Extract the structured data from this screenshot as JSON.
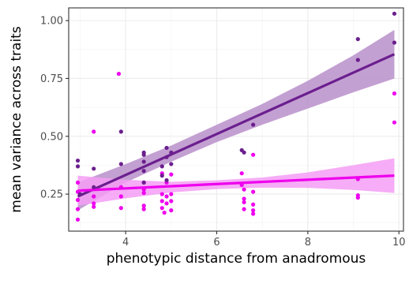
{
  "chart_data": {
    "type": "scatter",
    "title": "",
    "xlabel": "phenotypic distance from anadromous",
    "ylabel": "mean variance across traits",
    "xlim": [
      2.75,
      10.1
    ],
    "ylim": [
      0.09,
      1.055
    ],
    "xticks": [
      4,
      6,
      8,
      10
    ],
    "xtick_labels": [
      "4",
      "6",
      "8",
      "10"
    ],
    "yticks": [
      0.25,
      0.5,
      0.75,
      1.0
    ],
    "ytick_labels": [
      "0.25",
      "0.50",
      "0.75",
      "1.00"
    ],
    "grid": true,
    "legend": "none",
    "series": [
      {
        "color": "#6b1f8e",
        "band_color": "#b98fca",
        "points": [
          [
            2.95,
            0.395
          ],
          [
            2.95,
            0.37
          ],
          [
            3.0,
            0.25
          ],
          [
            3.3,
            0.36
          ],
          [
            3.3,
            0.28
          ],
          [
            3.9,
            0.52
          ],
          [
            3.9,
            0.38
          ],
          [
            4.4,
            0.43
          ],
          [
            4.4,
            0.42
          ],
          [
            4.4,
            0.39
          ],
          [
            4.4,
            0.35
          ],
          [
            4.4,
            0.3
          ],
          [
            4.8,
            0.37
          ],
          [
            4.8,
            0.33
          ],
          [
            4.9,
            0.45
          ],
          [
            4.9,
            0.41
          ],
          [
            4.9,
            0.31
          ],
          [
            5.0,
            0.43
          ],
          [
            5.0,
            0.38
          ],
          [
            6.55,
            0.44
          ],
          [
            6.6,
            0.43
          ],
          [
            6.8,
            0.55
          ],
          [
            9.1,
            0.92
          ],
          [
            9.1,
            0.83
          ],
          [
            9.9,
            1.03
          ],
          [
            9.9,
            0.905
          ]
        ],
        "fit": {
          "x": [
            2.95,
            9.9
          ],
          "y": [
            0.24,
            0.855
          ]
        },
        "ci": {
          "x": [
            2.95,
            4.0,
            5.0,
            6.0,
            7.0,
            8.0,
            9.0,
            9.9
          ],
          "lower": [
            0.18,
            0.3,
            0.39,
            0.475,
            0.55,
            0.62,
            0.69,
            0.75
          ],
          "upper": [
            0.3,
            0.38,
            0.46,
            0.55,
            0.64,
            0.74,
            0.85,
            0.96
          ]
        }
      },
      {
        "color": "#ee00ee",
        "band_color": "#f59df5",
        "points": [
          [
            2.95,
            0.14
          ],
          [
            2.95,
            0.185
          ],
          [
            2.95,
            0.225
          ],
          [
            2.95,
            0.26
          ],
          [
            2.95,
            0.3
          ],
          [
            3.3,
            0.52
          ],
          [
            3.3,
            0.24
          ],
          [
            3.3,
            0.195
          ],
          [
            3.3,
            0.21
          ],
          [
            3.85,
            0.77
          ],
          [
            3.9,
            0.28
          ],
          [
            3.9,
            0.24
          ],
          [
            3.9,
            0.19
          ],
          [
            4.4,
            0.3
          ],
          [
            4.4,
            0.27
          ],
          [
            4.4,
            0.255
          ],
          [
            4.4,
            0.2
          ],
          [
            4.4,
            0.185
          ],
          [
            4.8,
            0.34
          ],
          [
            4.8,
            0.25
          ],
          [
            4.8,
            0.22
          ],
          [
            4.8,
            0.19
          ],
          [
            4.85,
            0.17
          ],
          [
            4.9,
            0.3
          ],
          [
            4.9,
            0.24
          ],
          [
            4.9,
            0.21
          ],
          [
            5.0,
            0.335
          ],
          [
            5.0,
            0.25
          ],
          [
            5.0,
            0.22
          ],
          [
            5.0,
            0.18
          ],
          [
            6.55,
            0.34
          ],
          [
            6.55,
            0.29
          ],
          [
            6.6,
            0.27
          ],
          [
            6.6,
            0.23
          ],
          [
            6.6,
            0.215
          ],
          [
            6.6,
            0.185
          ],
          [
            6.8,
            0.42
          ],
          [
            6.8,
            0.26
          ],
          [
            6.8,
            0.205
          ],
          [
            6.8,
            0.18
          ],
          [
            6.8,
            0.165
          ],
          [
            9.1,
            0.315
          ],
          [
            9.1,
            0.245
          ],
          [
            9.1,
            0.235
          ],
          [
            9.9,
            0.685
          ],
          [
            9.9,
            0.56
          ]
        ],
        "fit": {
          "x": [
            2.95,
            9.9
          ],
          "y": [
            0.265,
            0.33
          ]
        },
        "ci": {
          "x": [
            2.95,
            4.0,
            5.0,
            6.0,
            7.0,
            8.0,
            9.0,
            9.9
          ],
          "lower": [
            0.2,
            0.232,
            0.257,
            0.272,
            0.278,
            0.277,
            0.268,
            0.255
          ],
          "upper": [
            0.33,
            0.312,
            0.303,
            0.31,
            0.322,
            0.344,
            0.375,
            0.405
          ]
        }
      }
    ]
  }
}
